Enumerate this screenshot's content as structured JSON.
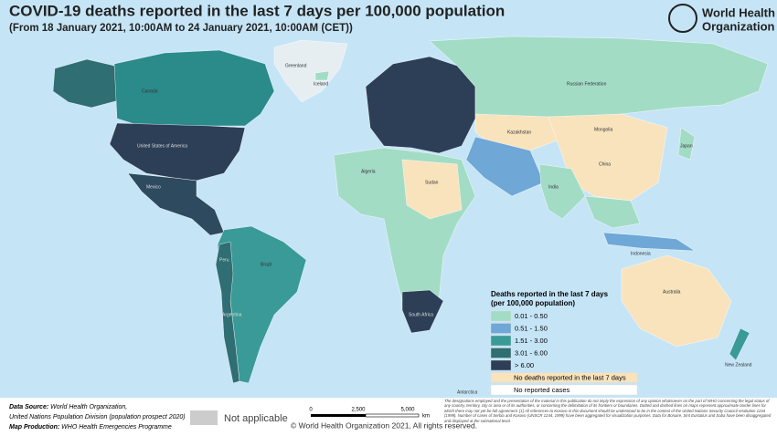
{
  "header": {
    "title": "COVID-19 deaths reported in the last 7 days per 100,000 population",
    "subtitle": "(From 18 January 2021, 10:00AM  to 24 January 2021, 10:00AM (CET))",
    "org_line1": "World Health",
    "org_line2": "Organization"
  },
  "legend": {
    "title_line1": "Deaths reported in the last 7 days",
    "title_line2": "(per 100,000 population)",
    "items": [
      {
        "label": "0.01 - 0.50",
        "color": "#a3dcc5"
      },
      {
        "label": "0.51 - 1.50",
        "color": "#6fa7d6"
      },
      {
        "label": "1.51 - 3.00",
        "color": "#3a9a97"
      },
      {
        "label": "3.01 - 6.00",
        "color": "#2f6e73"
      },
      {
        "label": "> 6.00",
        "color": "#2d3f57"
      },
      {
        "label": "No deaths reported in the last 7 days",
        "color": "#f8e3bd"
      },
      {
        "label": "No reported cases",
        "color": "#ffffff"
      }
    ]
  },
  "map_labels": [
    "Greenland",
    "Canada",
    "United States of America",
    "Mexico",
    "Brazil",
    "Russian Federation",
    "Kazakhstan",
    "Mongolia",
    "China",
    "India",
    "Australia",
    "Algeria",
    "Sudan",
    "South Africa",
    "Argentina",
    "Peru",
    "Iceland",
    "Japan",
    "Indonesia",
    "New Zealand",
    "Antarctica"
  ],
  "footer": {
    "source_label": "Data Source:",
    "source_text": "World Health Organization,",
    "source_line2": "United Nations Population Division (population prospect 2020)",
    "production_label": "Map Production:",
    "production_text": "WHO Health Emergencies Programme",
    "not_applicable": "Not applicable",
    "scale_0": "0",
    "scale_1": "2,500",
    "scale_2": "5,000",
    "scale_unit": "km",
    "copyright": "© World Health Organization  2021,  All rights reserved.",
    "disclaimer": "The designations employed and the presentation of the material in this publication do not imply the expression of any opinion whatsoever on the part of WHO concerning the legal status of any country, territory, city or area or of its authorities, or concerning the delimitation of its frontiers or boundaries. Dotted and dashed lines on maps represent approximate border lines for which there may not yet be full agreement. [1] All references to Kosovo in this document should be understood to be in the context of the United Nations Security Council resolution 1244 (1999). Number of cases of Serbia and Kosovo (UNSCR 1244, 1999) have been aggregated for visualization purposes. Data for Bonaire, Sint Eustatius and Saba have been disaggregated and displayed at the subnational level."
  }
}
